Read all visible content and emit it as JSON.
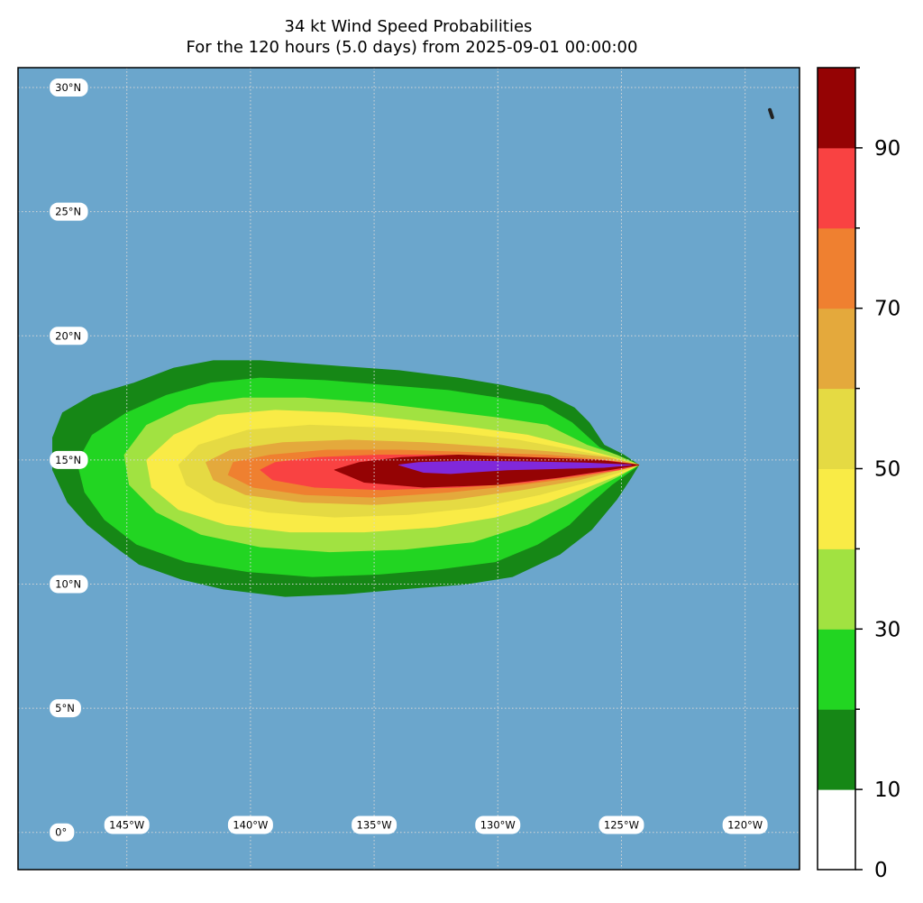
{
  "title": {
    "line1": "34 kt Wind Speed Probabilities",
    "line2": "For the 120 hours (5.0 days) from 2025-09-01 00:00:00"
  },
  "colors": {
    "ocean": "#6ba6cc",
    "land": "#222222",
    "gridline": "#d7d7d7"
  },
  "map": {
    "lon_range": [
      -149.4,
      -117.8
    ],
    "lat_range": [
      -1.5,
      30.8
    ],
    "lat_labels": [
      {
        "lat": 30,
        "text": "30°N"
      },
      {
        "lat": 25,
        "text": "25°N"
      },
      {
        "lat": 20,
        "text": "20°N"
      },
      {
        "lat": 15,
        "text": "15°N"
      },
      {
        "lat": 10,
        "text": "10°N"
      },
      {
        "lat": 5,
        "text": "5°N"
      },
      {
        "lat": 0,
        "text": "0°"
      }
    ],
    "lon_labels": [
      {
        "lon": -145,
        "text": "145°W"
      },
      {
        "lon": -140,
        "text": "140°W"
      },
      {
        "lon": -135,
        "text": "135°W"
      },
      {
        "lon": -130,
        "text": "130°W"
      },
      {
        "lon": -125,
        "text": "125°W"
      },
      {
        "lon": -120,
        "text": "120°W"
      }
    ],
    "lon_label_lat": 0.3,
    "lat_label_lon": -147.9,
    "grid_lons": [
      -145,
      -140,
      -135,
      -130,
      -125,
      -120
    ],
    "grid_lats": [
      0,
      5,
      10,
      15,
      20,
      25,
      30
    ],
    "land_points": [
      [
        -119.0,
        29.1
      ],
      [
        -118.9,
        28.8
      ]
    ]
  },
  "chart_data": {
    "type": "contourf",
    "variable": "34 kt wind speed probability (%)",
    "colorbar": {
      "levels": [
        0,
        10,
        20,
        30,
        40,
        50,
        60,
        70,
        80,
        90,
        100
      ],
      "colors": [
        "#ffffff",
        "#168716",
        "#22d522",
        "#a1e241",
        "#f9eb46",
        "#e5da43",
        "#e4a93c",
        "#ef8030",
        "#f94242",
        "#950304",
        "#8028da"
      ],
      "tick_labels": [
        "0",
        "10",
        "30",
        "50",
        "70",
        "90"
      ],
      "tick_values": [
        0,
        10,
        30,
        50,
        70,
        90
      ]
    },
    "contours": [
      {
        "level": 5,
        "color": "#168716",
        "polygon": [
          [
            -124.3,
            14.8
          ],
          [
            -124.9,
            15.2
          ],
          [
            -125.7,
            15.6
          ],
          [
            -126.3,
            16.5
          ],
          [
            -126.9,
            17.1
          ],
          [
            -127.9,
            17.6
          ],
          [
            -129.8,
            18.0
          ],
          [
            -131.6,
            18.3
          ],
          [
            -134.0,
            18.6
          ],
          [
            -136.8,
            18.8
          ],
          [
            -139.6,
            19.0
          ],
          [
            -141.5,
            19.0
          ],
          [
            -143.1,
            18.7
          ],
          [
            -144.7,
            18.1
          ],
          [
            -146.4,
            17.6
          ],
          [
            -147.6,
            16.9
          ],
          [
            -148.0,
            15.9
          ],
          [
            -148.0,
            14.6
          ],
          [
            -147.4,
            13.3
          ],
          [
            -146.6,
            12.4
          ],
          [
            -145.6,
            11.6
          ],
          [
            -144.5,
            10.8
          ],
          [
            -142.8,
            10.2
          ],
          [
            -141.1,
            9.8
          ],
          [
            -138.6,
            9.5
          ],
          [
            -136.2,
            9.6
          ],
          [
            -133.9,
            9.8
          ],
          [
            -131.3,
            10.0
          ],
          [
            -129.4,
            10.3
          ],
          [
            -127.5,
            11.2
          ],
          [
            -126.2,
            12.2
          ],
          [
            -125.2,
            13.4
          ],
          [
            -124.6,
            14.3
          ]
        ]
      },
      {
        "level": 10,
        "color": "#22d522",
        "polygon": [
          [
            -124.3,
            14.8
          ],
          [
            -125.0,
            15.1
          ],
          [
            -125.9,
            15.5
          ],
          [
            -127.0,
            16.5
          ],
          [
            -128.2,
            17.2
          ],
          [
            -130.0,
            17.5
          ],
          [
            -132.0,
            17.8
          ],
          [
            -134.5,
            18.0
          ],
          [
            -137.0,
            18.2
          ],
          [
            -139.6,
            18.3
          ],
          [
            -141.6,
            18.1
          ],
          [
            -143.4,
            17.6
          ],
          [
            -145.0,
            16.9
          ],
          [
            -146.4,
            16.0
          ],
          [
            -147.0,
            14.9
          ],
          [
            -146.7,
            13.7
          ],
          [
            -145.9,
            12.6
          ],
          [
            -144.6,
            11.6
          ],
          [
            -142.6,
            10.9
          ],
          [
            -140.1,
            10.5
          ],
          [
            -137.5,
            10.3
          ],
          [
            -134.8,
            10.4
          ],
          [
            -132.4,
            10.6
          ],
          [
            -130.1,
            10.9
          ],
          [
            -128.4,
            11.6
          ],
          [
            -127.1,
            12.4
          ],
          [
            -126.2,
            13.3
          ],
          [
            -125.4,
            14.0
          ],
          [
            -124.7,
            14.5
          ]
        ]
      },
      {
        "level": 20,
        "color": "#a1e241",
        "polygon": [
          [
            -124.3,
            14.8
          ],
          [
            -125.2,
            15.2
          ],
          [
            -126.4,
            15.6
          ],
          [
            -128.0,
            16.4
          ],
          [
            -130.0,
            16.7
          ],
          [
            -132.5,
            17.0
          ],
          [
            -135.0,
            17.3
          ],
          [
            -137.8,
            17.5
          ],
          [
            -140.3,
            17.5
          ],
          [
            -142.5,
            17.2
          ],
          [
            -144.2,
            16.4
          ],
          [
            -145.1,
            15.2
          ],
          [
            -144.9,
            14.0
          ],
          [
            -143.8,
            12.9
          ],
          [
            -142.0,
            12.0
          ],
          [
            -139.6,
            11.5
          ],
          [
            -136.8,
            11.3
          ],
          [
            -133.8,
            11.4
          ],
          [
            -131.0,
            11.7
          ],
          [
            -128.8,
            12.4
          ],
          [
            -127.2,
            13.2
          ],
          [
            -126.0,
            13.9
          ],
          [
            -125.0,
            14.4
          ]
        ]
      },
      {
        "level": 30,
        "color": "#f9eb46",
        "polygon": [
          [
            -124.3,
            14.8
          ],
          [
            -125.3,
            15.1
          ],
          [
            -126.8,
            15.5
          ],
          [
            -128.8,
            16.0
          ],
          [
            -131.0,
            16.3
          ],
          [
            -133.6,
            16.6
          ],
          [
            -136.4,
            16.9
          ],
          [
            -139.0,
            17.0
          ],
          [
            -141.3,
            16.8
          ],
          [
            -143.1,
            16.0
          ],
          [
            -144.2,
            15.0
          ],
          [
            -144.0,
            13.9
          ],
          [
            -142.9,
            13.0
          ],
          [
            -141.0,
            12.4
          ],
          [
            -138.4,
            12.1
          ],
          [
            -135.4,
            12.1
          ],
          [
            -132.5,
            12.3
          ],
          [
            -130.1,
            12.7
          ],
          [
            -128.0,
            13.3
          ],
          [
            -126.4,
            13.9
          ],
          [
            -125.1,
            14.4
          ]
        ]
      },
      {
        "level": 40,
        "color": "#e5da43",
        "polygon": [
          [
            -124.3,
            14.8
          ],
          [
            -125.4,
            15.1
          ],
          [
            -127.0,
            15.4
          ],
          [
            -129.2,
            15.8
          ],
          [
            -131.8,
            16.1
          ],
          [
            -134.8,
            16.3
          ],
          [
            -137.6,
            16.4
          ],
          [
            -140.1,
            16.2
          ],
          [
            -142.1,
            15.6
          ],
          [
            -142.9,
            14.8
          ],
          [
            -142.6,
            14.0
          ],
          [
            -141.4,
            13.3
          ],
          [
            -139.3,
            12.9
          ],
          [
            -136.6,
            12.7
          ],
          [
            -133.6,
            12.8
          ],
          [
            -130.8,
            13.1
          ],
          [
            -128.3,
            13.6
          ],
          [
            -126.4,
            14.1
          ],
          [
            -125.1,
            14.5
          ]
        ]
      },
      {
        "level": 50,
        "color": "#e4a93c",
        "polygon": [
          [
            -124.3,
            14.8
          ],
          [
            -125.6,
            15.1
          ],
          [
            -127.5,
            15.3
          ],
          [
            -130.0,
            15.5
          ],
          [
            -133.0,
            15.7
          ],
          [
            -136.0,
            15.8
          ],
          [
            -138.7,
            15.7
          ],
          [
            -140.8,
            15.4
          ],
          [
            -141.8,
            14.9
          ],
          [
            -141.5,
            14.2
          ],
          [
            -140.2,
            13.6
          ],
          [
            -137.9,
            13.3
          ],
          [
            -135.0,
            13.2
          ],
          [
            -131.9,
            13.4
          ],
          [
            -129.0,
            13.8
          ],
          [
            -126.7,
            14.2
          ],
          [
            -125.1,
            14.6
          ]
        ]
      },
      {
        "level": 60,
        "color": "#ef8030",
        "polygon": [
          [
            -124.3,
            14.8
          ],
          [
            -125.7,
            15.0
          ],
          [
            -128.0,
            15.2
          ],
          [
            -131.0,
            15.3
          ],
          [
            -134.0,
            15.4
          ],
          [
            -136.9,
            15.4
          ],
          [
            -139.2,
            15.2
          ],
          [
            -140.7,
            14.9
          ],
          [
            -140.9,
            14.4
          ],
          [
            -139.9,
            13.9
          ],
          [
            -137.8,
            13.6
          ],
          [
            -135.0,
            13.5
          ],
          [
            -132.0,
            13.7
          ],
          [
            -129.1,
            14.0
          ],
          [
            -126.8,
            14.3
          ],
          [
            -125.2,
            14.6
          ]
        ]
      },
      {
        "level": 70,
        "color": "#f94242",
        "polygon": [
          [
            -124.3,
            14.8
          ],
          [
            -125.8,
            15.0
          ],
          [
            -128.6,
            15.1
          ],
          [
            -131.8,
            15.2
          ],
          [
            -134.8,
            15.2
          ],
          [
            -137.3,
            15.1
          ],
          [
            -139.0,
            14.9
          ],
          [
            -139.6,
            14.6
          ],
          [
            -139.1,
            14.2
          ],
          [
            -137.4,
            13.9
          ],
          [
            -134.7,
            13.8
          ],
          [
            -131.6,
            13.9
          ],
          [
            -128.8,
            14.1
          ],
          [
            -126.6,
            14.4
          ],
          [
            -125.1,
            14.6
          ]
        ]
      },
      {
        "level": 80,
        "color": "#950304",
        "polygon": [
          [
            -124.3,
            14.8
          ],
          [
            -126.0,
            15.0
          ],
          [
            -128.8,
            15.1
          ],
          [
            -131.6,
            15.2
          ],
          [
            -133.9,
            15.1
          ],
          [
            -135.6,
            14.9
          ],
          [
            -136.6,
            14.6
          ],
          [
            -135.4,
            14.1
          ],
          [
            -133.0,
            13.9
          ],
          [
            -130.1,
            14.0
          ],
          [
            -127.5,
            14.3
          ],
          [
            -125.5,
            14.6
          ]
        ]
      },
      {
        "level": 90,
        "color": "#8028da",
        "polygon": [
          [
            -124.6,
            14.8
          ],
          [
            -126.5,
            14.88
          ],
          [
            -129.0,
            14.93
          ],
          [
            -131.4,
            14.95
          ],
          [
            -133.2,
            14.9
          ],
          [
            -134.0,
            14.8
          ],
          [
            -133.0,
            14.5
          ],
          [
            -131.9,
            14.45
          ],
          [
            -131.2,
            14.5
          ],
          [
            -129.6,
            14.6
          ],
          [
            -127.6,
            14.65
          ],
          [
            -125.7,
            14.7
          ]
        ]
      }
    ]
  }
}
